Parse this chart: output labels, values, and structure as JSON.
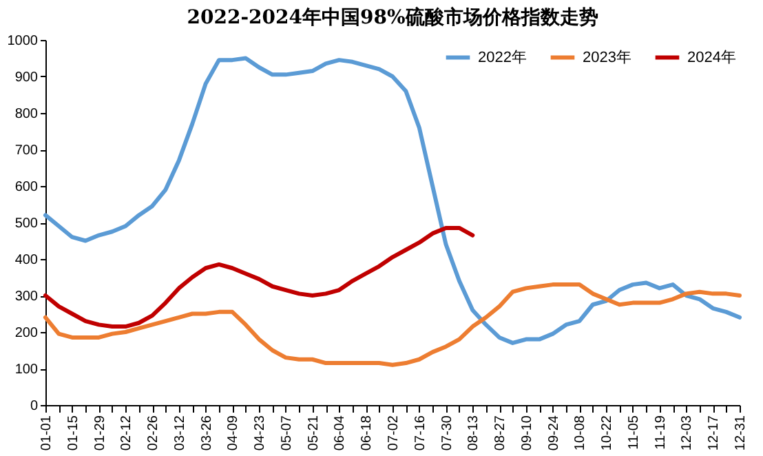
{
  "chart_data": {
    "type": "line",
    "title": "2022-2024年中国98%硫酸市场价格指数走势",
    "categories": [
      "01-01",
      null,
      "01-15",
      null,
      "01-29",
      null,
      "02-12",
      null,
      "02-26",
      null,
      "03-12",
      null,
      "03-26",
      null,
      "04-09",
      null,
      "04-23",
      null,
      "05-07",
      null,
      "05-21",
      null,
      "06-04",
      null,
      "06-18",
      null,
      "07-02",
      null,
      "07-16",
      null,
      "07-30",
      null,
      "08-13",
      null,
      "08-27",
      null,
      "09-10",
      null,
      "09-24",
      null,
      "10-08",
      null,
      "10-22",
      null,
      "11-05",
      null,
      "11-19",
      null,
      "12-03",
      null,
      "12-17",
      null,
      "12-31"
    ],
    "series": [
      {
        "name": "2022年",
        "color": "#5b9bd5",
        "values": [
          520,
          490,
          460,
          450,
          465,
          475,
          490,
          520,
          545,
          590,
          670,
          770,
          880,
          945,
          945,
          950,
          925,
          905,
          905,
          910,
          915,
          935,
          945,
          940,
          930,
          920,
          900,
          860,
          760,
          600,
          440,
          340,
          260,
          220,
          185,
          170,
          180,
          180,
          195,
          220,
          230,
          275,
          285,
          315,
          330,
          335,
          320,
          330,
          300,
          290,
          265,
          255,
          240
        ]
      },
      {
        "name": "2023年",
        "color": "#ed7d31",
        "values": [
          240,
          195,
          185,
          185,
          185,
          195,
          200,
          210,
          220,
          230,
          240,
          250,
          250,
          255,
          255,
          220,
          180,
          150,
          130,
          125,
          125,
          115,
          115,
          115,
          115,
          115,
          110,
          115,
          125,
          145,
          160,
          180,
          215,
          240,
          270,
          310,
          320,
          325,
          330,
          330,
          330,
          305,
          290,
          275,
          280,
          280,
          280,
          290,
          305,
          310,
          305,
          305,
          300
        ]
      },
      {
        "name": "2024年",
        "color": "#c00000",
        "values": [
          300,
          270,
          250,
          230,
          220,
          215,
          215,
          225,
          245,
          280,
          320,
          350,
          375,
          385,
          375,
          360,
          345,
          325,
          315,
          305,
          300,
          305,
          315,
          340,
          360,
          380,
          405,
          425,
          445,
          470,
          485,
          485,
          465,
          null,
          null,
          null,
          null,
          null,
          null,
          null,
          null,
          null,
          null,
          null,
          null,
          null,
          null,
          null,
          null,
          null,
          null,
          null,
          null
        ]
      }
    ],
    "ylim": [
      0,
      1000
    ],
    "yticks": [
      0,
      100,
      200,
      300,
      400,
      500,
      600,
      700,
      800,
      900,
      1000
    ],
    "legend": "top right",
    "grid": false,
    "marker": "none",
    "line_style": "solid"
  }
}
